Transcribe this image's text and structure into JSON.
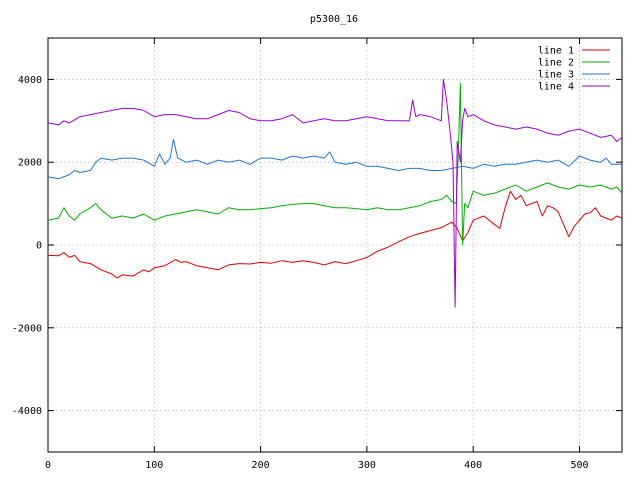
{
  "chart_data": {
    "type": "line",
    "title": "p5300_16",
    "xlabel": "",
    "ylabel": "",
    "xlim": [
      0,
      540
    ],
    "ylim": [
      -5000,
      5000
    ],
    "x_ticks": [
      0,
      100,
      200,
      300,
      400,
      500
    ],
    "y_ticks": [
      -4000,
      -2000,
      0,
      2000,
      4000
    ],
    "x_tick_labels": [
      "0",
      "100",
      "200",
      "300",
      "400",
      "500"
    ],
    "y_tick_labels": [
      "-4000",
      "-2000",
      "0",
      "2000",
      "4000"
    ],
    "grid": true,
    "legend_position": "top-right",
    "series": [
      {
        "name": "line 1",
        "color": "#e00000",
        "points": [
          [
            0,
            -250
          ],
          [
            10,
            -260
          ],
          [
            15,
            -180
          ],
          [
            20,
            -300
          ],
          [
            25,
            -250
          ],
          [
            30,
            -400
          ],
          [
            40,
            -450
          ],
          [
            50,
            -600
          ],
          [
            60,
            -700
          ],
          [
            65,
            -800
          ],
          [
            70,
            -720
          ],
          [
            80,
            -750
          ],
          [
            90,
            -600
          ],
          [
            95,
            -650
          ],
          [
            100,
            -550
          ],
          [
            110,
            -500
          ],
          [
            120,
            -350
          ],
          [
            125,
            -420
          ],
          [
            130,
            -400
          ],
          [
            140,
            -500
          ],
          [
            150,
            -550
          ],
          [
            160,
            -600
          ],
          [
            170,
            -480
          ],
          [
            180,
            -450
          ],
          [
            190,
            -460
          ],
          [
            200,
            -420
          ],
          [
            210,
            -440
          ],
          [
            220,
            -380
          ],
          [
            230,
            -420
          ],
          [
            240,
            -380
          ],
          [
            250,
            -420
          ],
          [
            260,
            -480
          ],
          [
            270,
            -400
          ],
          [
            280,
            -450
          ],
          [
            290,
            -380
          ],
          [
            300,
            -300
          ],
          [
            310,
            -150
          ],
          [
            320,
            -50
          ],
          [
            330,
            80
          ],
          [
            340,
            200
          ],
          [
            350,
            280
          ],
          [
            360,
            350
          ],
          [
            370,
            420
          ],
          [
            380,
            550
          ],
          [
            385,
            400
          ],
          [
            390,
            100
          ],
          [
            395,
            300
          ],
          [
            400,
            600
          ],
          [
            410,
            700
          ],
          [
            420,
            500
          ],
          [
            425,
            400
          ],
          [
            430,
            900
          ],
          [
            435,
            1300
          ],
          [
            440,
            1100
          ],
          [
            445,
            1200
          ],
          [
            450,
            950
          ],
          [
            460,
            1050
          ],
          [
            465,
            700
          ],
          [
            470,
            950
          ],
          [
            475,
            900
          ],
          [
            480,
            800
          ],
          [
            485,
            500
          ],
          [
            490,
            200
          ],
          [
            495,
            450
          ],
          [
            500,
            600
          ],
          [
            505,
            750
          ],
          [
            510,
            780
          ],
          [
            515,
            900
          ],
          [
            520,
            700
          ],
          [
            525,
            650
          ],
          [
            530,
            600
          ],
          [
            535,
            700
          ],
          [
            540,
            650
          ]
        ]
      },
      {
        "name": "line 2",
        "color": "#00b000",
        "points": [
          [
            0,
            600
          ],
          [
            10,
            650
          ],
          [
            15,
            900
          ],
          [
            20,
            700
          ],
          [
            25,
            600
          ],
          [
            30,
            750
          ],
          [
            40,
            900
          ],
          [
            45,
            1000
          ],
          [
            50,
            850
          ],
          [
            60,
            650
          ],
          [
            70,
            700
          ],
          [
            80,
            650
          ],
          [
            90,
            750
          ],
          [
            100,
            600
          ],
          [
            110,
            700
          ],
          [
            120,
            750
          ],
          [
            130,
            800
          ],
          [
            140,
            850
          ],
          [
            150,
            800
          ],
          [
            160,
            750
          ],
          [
            170,
            900
          ],
          [
            180,
            850
          ],
          [
            190,
            850
          ],
          [
            200,
            880
          ],
          [
            210,
            900
          ],
          [
            220,
            950
          ],
          [
            230,
            980
          ],
          [
            240,
            1000
          ],
          [
            250,
            1000
          ],
          [
            260,
            950
          ],
          [
            270,
            900
          ],
          [
            280,
            900
          ],
          [
            290,
            880
          ],
          [
            300,
            850
          ],
          [
            310,
            900
          ],
          [
            320,
            850
          ],
          [
            330,
            850
          ],
          [
            340,
            900
          ],
          [
            350,
            950
          ],
          [
            360,
            1050
          ],
          [
            370,
            1100
          ],
          [
            375,
            1200
          ],
          [
            380,
            1050
          ],
          [
            384,
            1000
          ],
          [
            386,
            2200
          ],
          [
            388,
            3900
          ],
          [
            390,
            0
          ],
          [
            392,
            1000
          ],
          [
            395,
            900
          ],
          [
            400,
            1300
          ],
          [
            410,
            1200
          ],
          [
            420,
            1250
          ],
          [
            430,
            1350
          ],
          [
            440,
            1450
          ],
          [
            450,
            1300
          ],
          [
            460,
            1400
          ],
          [
            470,
            1500
          ],
          [
            480,
            1400
          ],
          [
            490,
            1350
          ],
          [
            500,
            1450
          ],
          [
            510,
            1400
          ],
          [
            520,
            1450
          ],
          [
            530,
            1350
          ],
          [
            535,
            1400
          ],
          [
            540,
            1250
          ]
        ]
      },
      {
        "name": "line 3",
        "color": "#1e78d2",
        "points": [
          [
            0,
            1650
          ],
          [
            10,
            1600
          ],
          [
            20,
            1700
          ],
          [
            25,
            1800
          ],
          [
            30,
            1750
          ],
          [
            40,
            1800
          ],
          [
            45,
            2000
          ],
          [
            50,
            2100
          ],
          [
            60,
            2050
          ],
          [
            70,
            2100
          ],
          [
            80,
            2100
          ],
          [
            90,
            2050
          ],
          [
            100,
            1900
          ],
          [
            105,
            2200
          ],
          [
            110,
            1950
          ],
          [
            115,
            2100
          ],
          [
            118,
            2550
          ],
          [
            122,
            2100
          ],
          [
            130,
            2000
          ],
          [
            140,
            2050
          ],
          [
            150,
            1950
          ],
          [
            160,
            2050
          ],
          [
            170,
            2000
          ],
          [
            180,
            2050
          ],
          [
            190,
            1950
          ],
          [
            200,
            2100
          ],
          [
            210,
            2100
          ],
          [
            220,
            2050
          ],
          [
            230,
            2150
          ],
          [
            240,
            2100
          ],
          [
            250,
            2150
          ],
          [
            260,
            2100
          ],
          [
            265,
            2250
          ],
          [
            270,
            2000
          ],
          [
            280,
            1950
          ],
          [
            290,
            2000
          ],
          [
            300,
            1900
          ],
          [
            310,
            1900
          ],
          [
            320,
            1850
          ],
          [
            330,
            1800
          ],
          [
            340,
            1850
          ],
          [
            350,
            1850
          ],
          [
            360,
            1800
          ],
          [
            370,
            1800
          ],
          [
            380,
            1850
          ],
          [
            390,
            1900
          ],
          [
            400,
            1850
          ],
          [
            410,
            1950
          ],
          [
            420,
            1900
          ],
          [
            430,
            1950
          ],
          [
            440,
            1950
          ],
          [
            450,
            2000
          ],
          [
            460,
            2050
          ],
          [
            470,
            2000
          ],
          [
            480,
            2050
          ],
          [
            490,
            1900
          ],
          [
            500,
            2150
          ],
          [
            510,
            2050
          ],
          [
            520,
            2000
          ],
          [
            525,
            2100
          ],
          [
            530,
            1950
          ],
          [
            540,
            1950
          ]
        ]
      },
      {
        "name": "line 4",
        "color": "#a000d0",
        "points": [
          [
            0,
            2950
          ],
          [
            10,
            2900
          ],
          [
            15,
            3000
          ],
          [
            20,
            2950
          ],
          [
            30,
            3100
          ],
          [
            40,
            3150
          ],
          [
            50,
            3200
          ],
          [
            60,
            3250
          ],
          [
            70,
            3300
          ],
          [
            80,
            3300
          ],
          [
            90,
            3250
          ],
          [
            100,
            3100
          ],
          [
            110,
            3150
          ],
          [
            120,
            3150
          ],
          [
            130,
            3100
          ],
          [
            140,
            3050
          ],
          [
            150,
            3050
          ],
          [
            160,
            3150
          ],
          [
            170,
            3250
          ],
          [
            180,
            3200
          ],
          [
            190,
            3050
          ],
          [
            200,
            3000
          ],
          [
            210,
            3000
          ],
          [
            220,
            3050
          ],
          [
            230,
            3150
          ],
          [
            240,
            2950
          ],
          [
            250,
            3000
          ],
          [
            260,
            3050
          ],
          [
            270,
            3000
          ],
          [
            280,
            3000
          ],
          [
            290,
            3050
          ],
          [
            300,
            3100
          ],
          [
            310,
            3050
          ],
          [
            320,
            3000
          ],
          [
            330,
            3000
          ],
          [
            340,
            3000
          ],
          [
            343,
            3500
          ],
          [
            346,
            3100
          ],
          [
            350,
            3150
          ],
          [
            360,
            3100
          ],
          [
            370,
            3000
          ],
          [
            372,
            4000
          ],
          [
            375,
            3500
          ],
          [
            378,
            2800
          ],
          [
            381,
            2000
          ],
          [
            383,
            -1500
          ],
          [
            385,
            2500
          ],
          [
            388,
            2000
          ],
          [
            390,
            3000
          ],
          [
            392,
            3300
          ],
          [
            395,
            3100
          ],
          [
            400,
            3150
          ],
          [
            410,
            3000
          ],
          [
            420,
            2900
          ],
          [
            430,
            2850
          ],
          [
            440,
            2800
          ],
          [
            450,
            2850
          ],
          [
            460,
            2800
          ],
          [
            470,
            2700
          ],
          [
            480,
            2650
          ],
          [
            490,
            2750
          ],
          [
            500,
            2800
          ],
          [
            510,
            2700
          ],
          [
            520,
            2600
          ],
          [
            530,
            2650
          ],
          [
            535,
            2500
          ],
          [
            540,
            2600
          ]
        ]
      }
    ]
  }
}
